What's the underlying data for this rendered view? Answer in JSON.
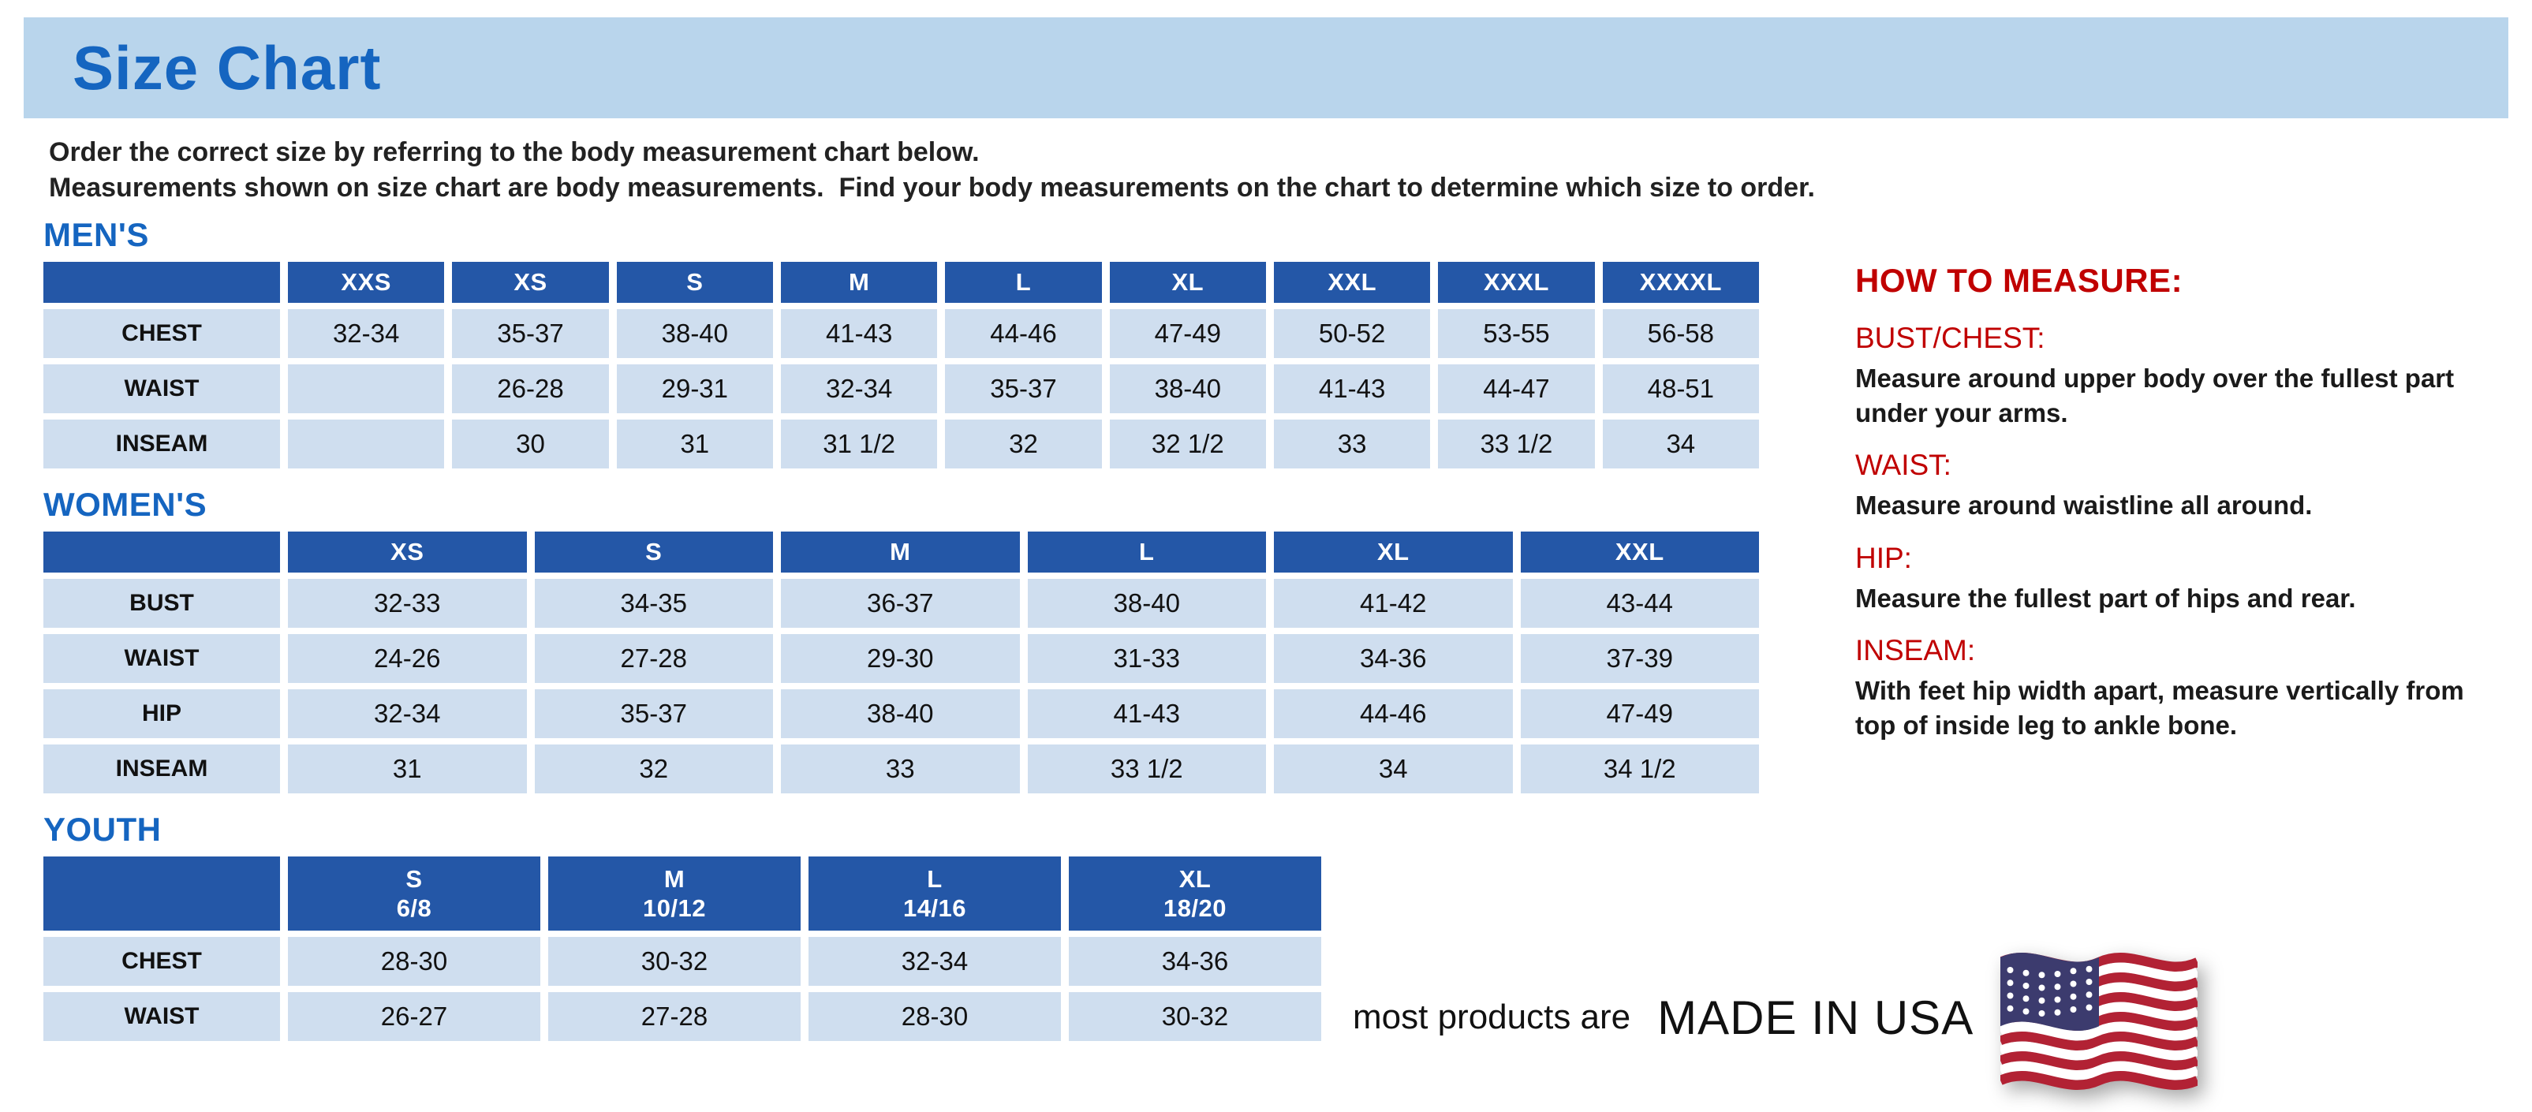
{
  "page": {
    "title": "Size Chart",
    "intro_line1": "Order the correct size by referring to the body measurement chart below.",
    "intro_line2": "Measurements shown on size chart are body measurements.  Find your body measurements on the chart to determine which size to order."
  },
  "tables": [
    {
      "id": "mens",
      "section_title": "MEN'S",
      "columns": [
        "",
        "XXS",
        "XS",
        "S",
        "M",
        "L",
        "XL",
        "XXL",
        "XXXL",
        "XXXXL"
      ],
      "rows": [
        {
          "label": "CHEST",
          "values": [
            "32-34",
            "35-37",
            "38-40",
            "41-43",
            "44-46",
            "47-49",
            "50-52",
            "53-55",
            "56-58"
          ]
        },
        {
          "label": "WAIST",
          "values": [
            "",
            "26-28",
            "29-31",
            "32-34",
            "35-37",
            "38-40",
            "41-43",
            "44-47",
            "48-51"
          ]
        },
        {
          "label": "INSEAM",
          "values": [
            "",
            "30",
            "31",
            "31 1/2",
            "32",
            "32 1/2",
            "33",
            "33 1/2",
            "34"
          ]
        }
      ]
    },
    {
      "id": "womens",
      "section_title": "WOMEN'S",
      "columns": [
        "",
        "XS",
        "S",
        "M",
        "L",
        "XL",
        "XXL"
      ],
      "rows": [
        {
          "label": "BUST",
          "values": [
            "32-33",
            "34-35",
            "36-37",
            "38-40",
            "41-42",
            "43-44"
          ]
        },
        {
          "label": "WAIST",
          "values": [
            "24-26",
            "27-28",
            "29-30",
            "31-33",
            "34-36",
            "37-39"
          ]
        },
        {
          "label": "HIP",
          "values": [
            "32-34",
            "35-37",
            "38-40",
            "41-43",
            "44-46",
            "47-49"
          ]
        },
        {
          "label": "INSEAM",
          "values": [
            "31",
            "32",
            "33",
            "33 1/2",
            "34",
            "34 1/2"
          ]
        }
      ]
    },
    {
      "id": "youth",
      "section_title": "YOUTH",
      "columns": [
        "",
        "S\n6/8",
        "M\n10/12",
        "L\n14/16",
        "XL\n18/20"
      ],
      "rows": [
        {
          "label": "CHEST",
          "values": [
            "28-30",
            "30-32",
            "32-34",
            "34-36"
          ]
        },
        {
          "label": "WAIST",
          "values": [
            "26-27",
            "27-28",
            "28-30",
            "30-32"
          ]
        }
      ]
    }
  ],
  "how_to_measure": {
    "title": "HOW TO MEASURE:",
    "items": [
      {
        "label": "BUST/CHEST:",
        "text": "Measure around upper body over the fullest part under your arms."
      },
      {
        "label": "WAIST:",
        "text": "Measure around waistline all around."
      },
      {
        "label": "HIP:",
        "text": "Measure the fullest part of hips and rear."
      },
      {
        "label": "INSEAM:",
        "text": "With feet hip width apart, measure vertically from top of inside leg to ankle bone."
      }
    ]
  },
  "footer": {
    "made_in_prefix": "most products are",
    "made_in": "MADE IN USA",
    "flag_icon": "us-flag-icon"
  },
  "colors": {
    "banner_background": "#b9d5ec",
    "heading_blue": "#1565c0",
    "table_header_blue": "#2457a7",
    "cell_light_blue": "#cfdeef",
    "measure_red": "#c00000",
    "text_dark": "#111111",
    "flag_red": "#b22234",
    "flag_blue": "#3c3b6e"
  }
}
